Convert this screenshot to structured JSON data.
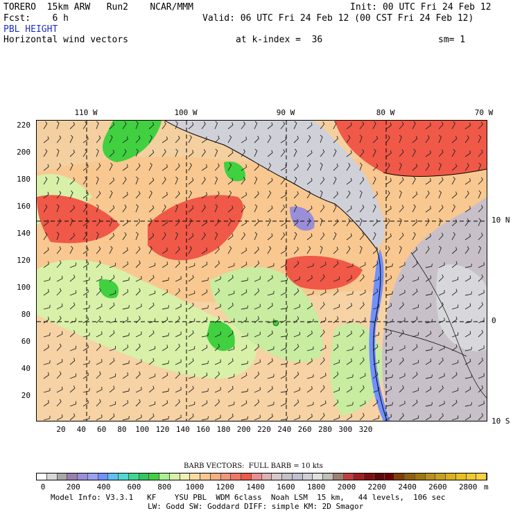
{
  "header": {
    "model": "TORERO  15km ARW   Run2    NCAR/MMM",
    "init": "Init: 00 UTC Fri 24 Feb 12",
    "fcst": "Fcst:    6 h",
    "valid": "Valid: 06 UTC Fri 24 Feb 12 (00 CST Fri 24 Feb 12)",
    "field": "PBL HEIGHT",
    "vector_desc": "Horizontal wind vectors",
    "kindex": "at k-index =  36",
    "sm": "sm= 1"
  },
  "map": {
    "y_ticks": [
      "220",
      "200",
      "180",
      "160",
      "140",
      "120",
      "100",
      "80",
      "60",
      "40",
      "20"
    ],
    "x_ticks": [
      "20",
      "40",
      "60",
      "80",
      "100",
      "120",
      "140",
      "160",
      "180",
      "200",
      "220",
      "240",
      "260",
      "280",
      "300",
      "320"
    ],
    "lon_labels": [
      "110 W",
      "100 W",
      "90 W",
      "80 W",
      "70 W"
    ],
    "lat_labels": [
      "10 N",
      "0",
      "10 S"
    ]
  },
  "legend": {
    "barb_note": "BARB VECTORS:  FULL BARB = 10 kts",
    "unit": "m",
    "tick_labels": [
      "0",
      "200",
      "400",
      "600",
      "800",
      "1000",
      "1200",
      "1400",
      "1600",
      "1800",
      "2000",
      "2200",
      "2400",
      "2600",
      "2800"
    ],
    "colors": [
      "#ffffff",
      "#d9d9d9",
      "#a8a8a8",
      "#9a7fb0",
      "#9b8ed8",
      "#9aa0f0",
      "#7090ff",
      "#60c0f0",
      "#50d8d0",
      "#40d890",
      "#30c860",
      "#40d040",
      "#a8f090",
      "#d8f0a8",
      "#f0f0b0",
      "#f8dca0",
      "#f8c890",
      "#f4b080",
      "#f09878",
      "#f07868",
      "#f05848",
      "#e89090",
      "#e0b0b0",
      "#d8c8c8",
      "#c8c0c8",
      "#c0c0d0",
      "#d0d0d8",
      "#e0e0e0",
      "#c0c0b8",
      "#a08070",
      "#c04040",
      "#a02020",
      "#801010",
      "#600808",
      "#700000",
      "#804000",
      "#906010",
      "#a07810",
      "#b89020",
      "#c8a020",
      "#d8b020",
      "#e8c020",
      "#f0c830",
      "#f8d040"
    ]
  },
  "footer": {
    "line1": "Model Info: V3.3.1   KF    YSU PBL  WDM 6class  Noah LSM  15 km,   44 levels,  106 sec",
    "line2": "LW: Godd SW: Goddard DIFF: simple KM: 2D Smagor"
  }
}
